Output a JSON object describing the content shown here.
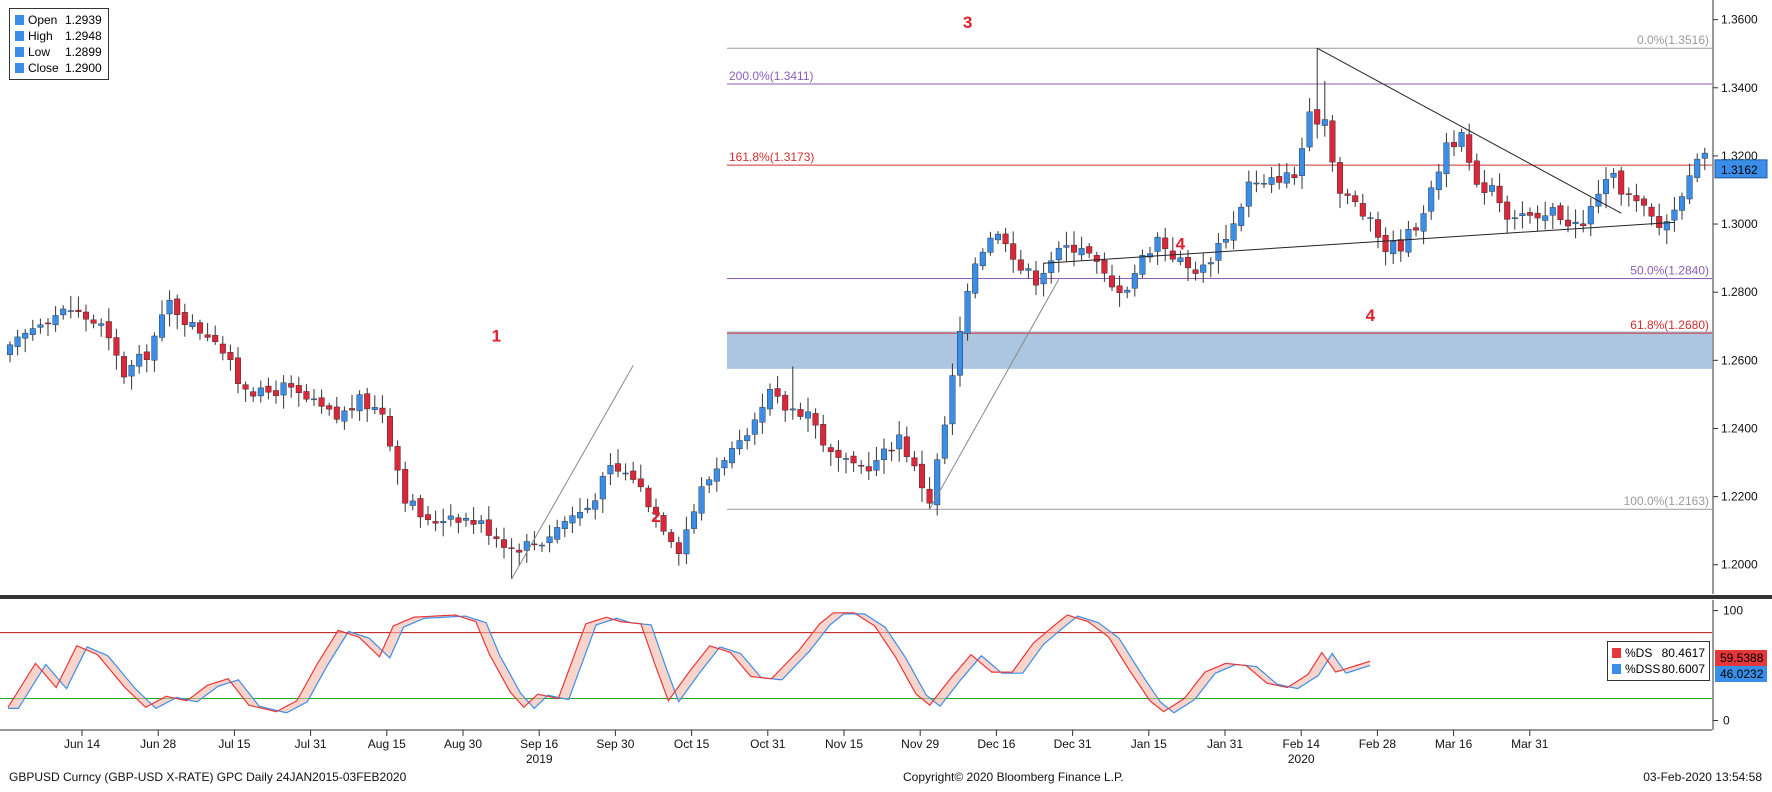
{
  "chart_data": {
    "type": "candlestick",
    "instrument": "GBPUSD Curncy (GBP-USD X-RATE) GPC  Daily 24JAN2015-03FEB2020",
    "copyright": "Copyright© 2020 Bloomberg Finance L.P.",
    "timestamp": "03-Feb-2020 13:54:58",
    "ohlc_legend": [
      {
        "label": "Open",
        "value": "1.2939"
      },
      {
        "label": "High",
        "value": "1.2948"
      },
      {
        "label": "Low",
        "value": "1.2899"
      },
      {
        "label": "Close",
        "value": "1.2900"
      }
    ],
    "price_axis": {
      "ticks": [
        "1.3600",
        "1.3400",
        "1.3200",
        "1.3000",
        "1.2800",
        "1.2600",
        "1.2400",
        "1.2200",
        "1.2000"
      ],
      "range": [
        1.192,
        1.364
      ],
      "last_price_label": "1.3162",
      "last_price": 1.3162
    },
    "oscillator_axis": {
      "ticks": [
        "100",
        "0"
      ],
      "range": [
        -5,
        106
      ],
      "upper_line": 80,
      "lower_line": 20
    },
    "time_axis": {
      "labels": [
        "Jun 14",
        "Jun 28",
        "Jul 15",
        "Jul 31",
        "Aug 15",
        "Aug 30",
        "Sep 16",
        "Sep 30",
        "Oct 15",
        "Oct 31",
        "Nov 15",
        "Nov 29",
        "Dec 16",
        "Dec 31",
        "Jan 15",
        "Jan 31",
        "Feb 14",
        "Feb 28",
        "Mar 16",
        "Mar 31"
      ],
      "year_labels": [
        {
          "after": "Sep 16",
          "label": "2019"
        },
        {
          "after": "Feb 14",
          "label": "2020"
        }
      ]
    },
    "fibonacci_levels": [
      {
        "label": "0.0%(1.3516)",
        "value": 1.3516,
        "color": "#9a9a9a"
      },
      {
        "label": "200.0%(1.3411)",
        "value": 1.3411,
        "color": "#8e5db8"
      },
      {
        "label": "161.8%(1.3173)",
        "value": 1.3173,
        "color": "#d32f2f"
      },
      {
        "label": "50.0%(1.2840)",
        "value": 1.284,
        "color": "#8e5db8"
      },
      {
        "label": "61.8%(1.2680)",
        "value": 1.268,
        "color": "#d32f2f"
      },
      {
        "label": "100.0%(1.2163)",
        "value": 1.2163,
        "color": "#9a9a9a"
      }
    ],
    "zone": {
      "from": 1.2575,
      "to": 1.2685,
      "color": "#9dbcdd"
    },
    "wave_labels": [
      {
        "label": "1",
        "date_index": 64,
        "price": 1.2655
      },
      {
        "label": "2",
        "date_index": 85,
        "price": 1.2125
      },
      {
        "label": "3",
        "date_index": 126,
        "price": 1.3575
      },
      {
        "label": "4",
        "date_index": 154,
        "price": 1.2925
      },
      {
        "label": "4",
        "date_index": 179,
        "price": 1.2715
      }
    ],
    "oscillator_legend": [
      {
        "label": "%DS",
        "value": "80.4617",
        "color": "#e5383b",
        "current": "59.5388"
      },
      {
        "label": "%DSS",
        "value": "80.6007",
        "color": "#3b8ee8",
        "current": "46.0232"
      }
    ],
    "colors": {
      "up": "#3b8ee8",
      "down": "#d9283a",
      "wick": "#333333",
      "trend": "#222222"
    }
  }
}
